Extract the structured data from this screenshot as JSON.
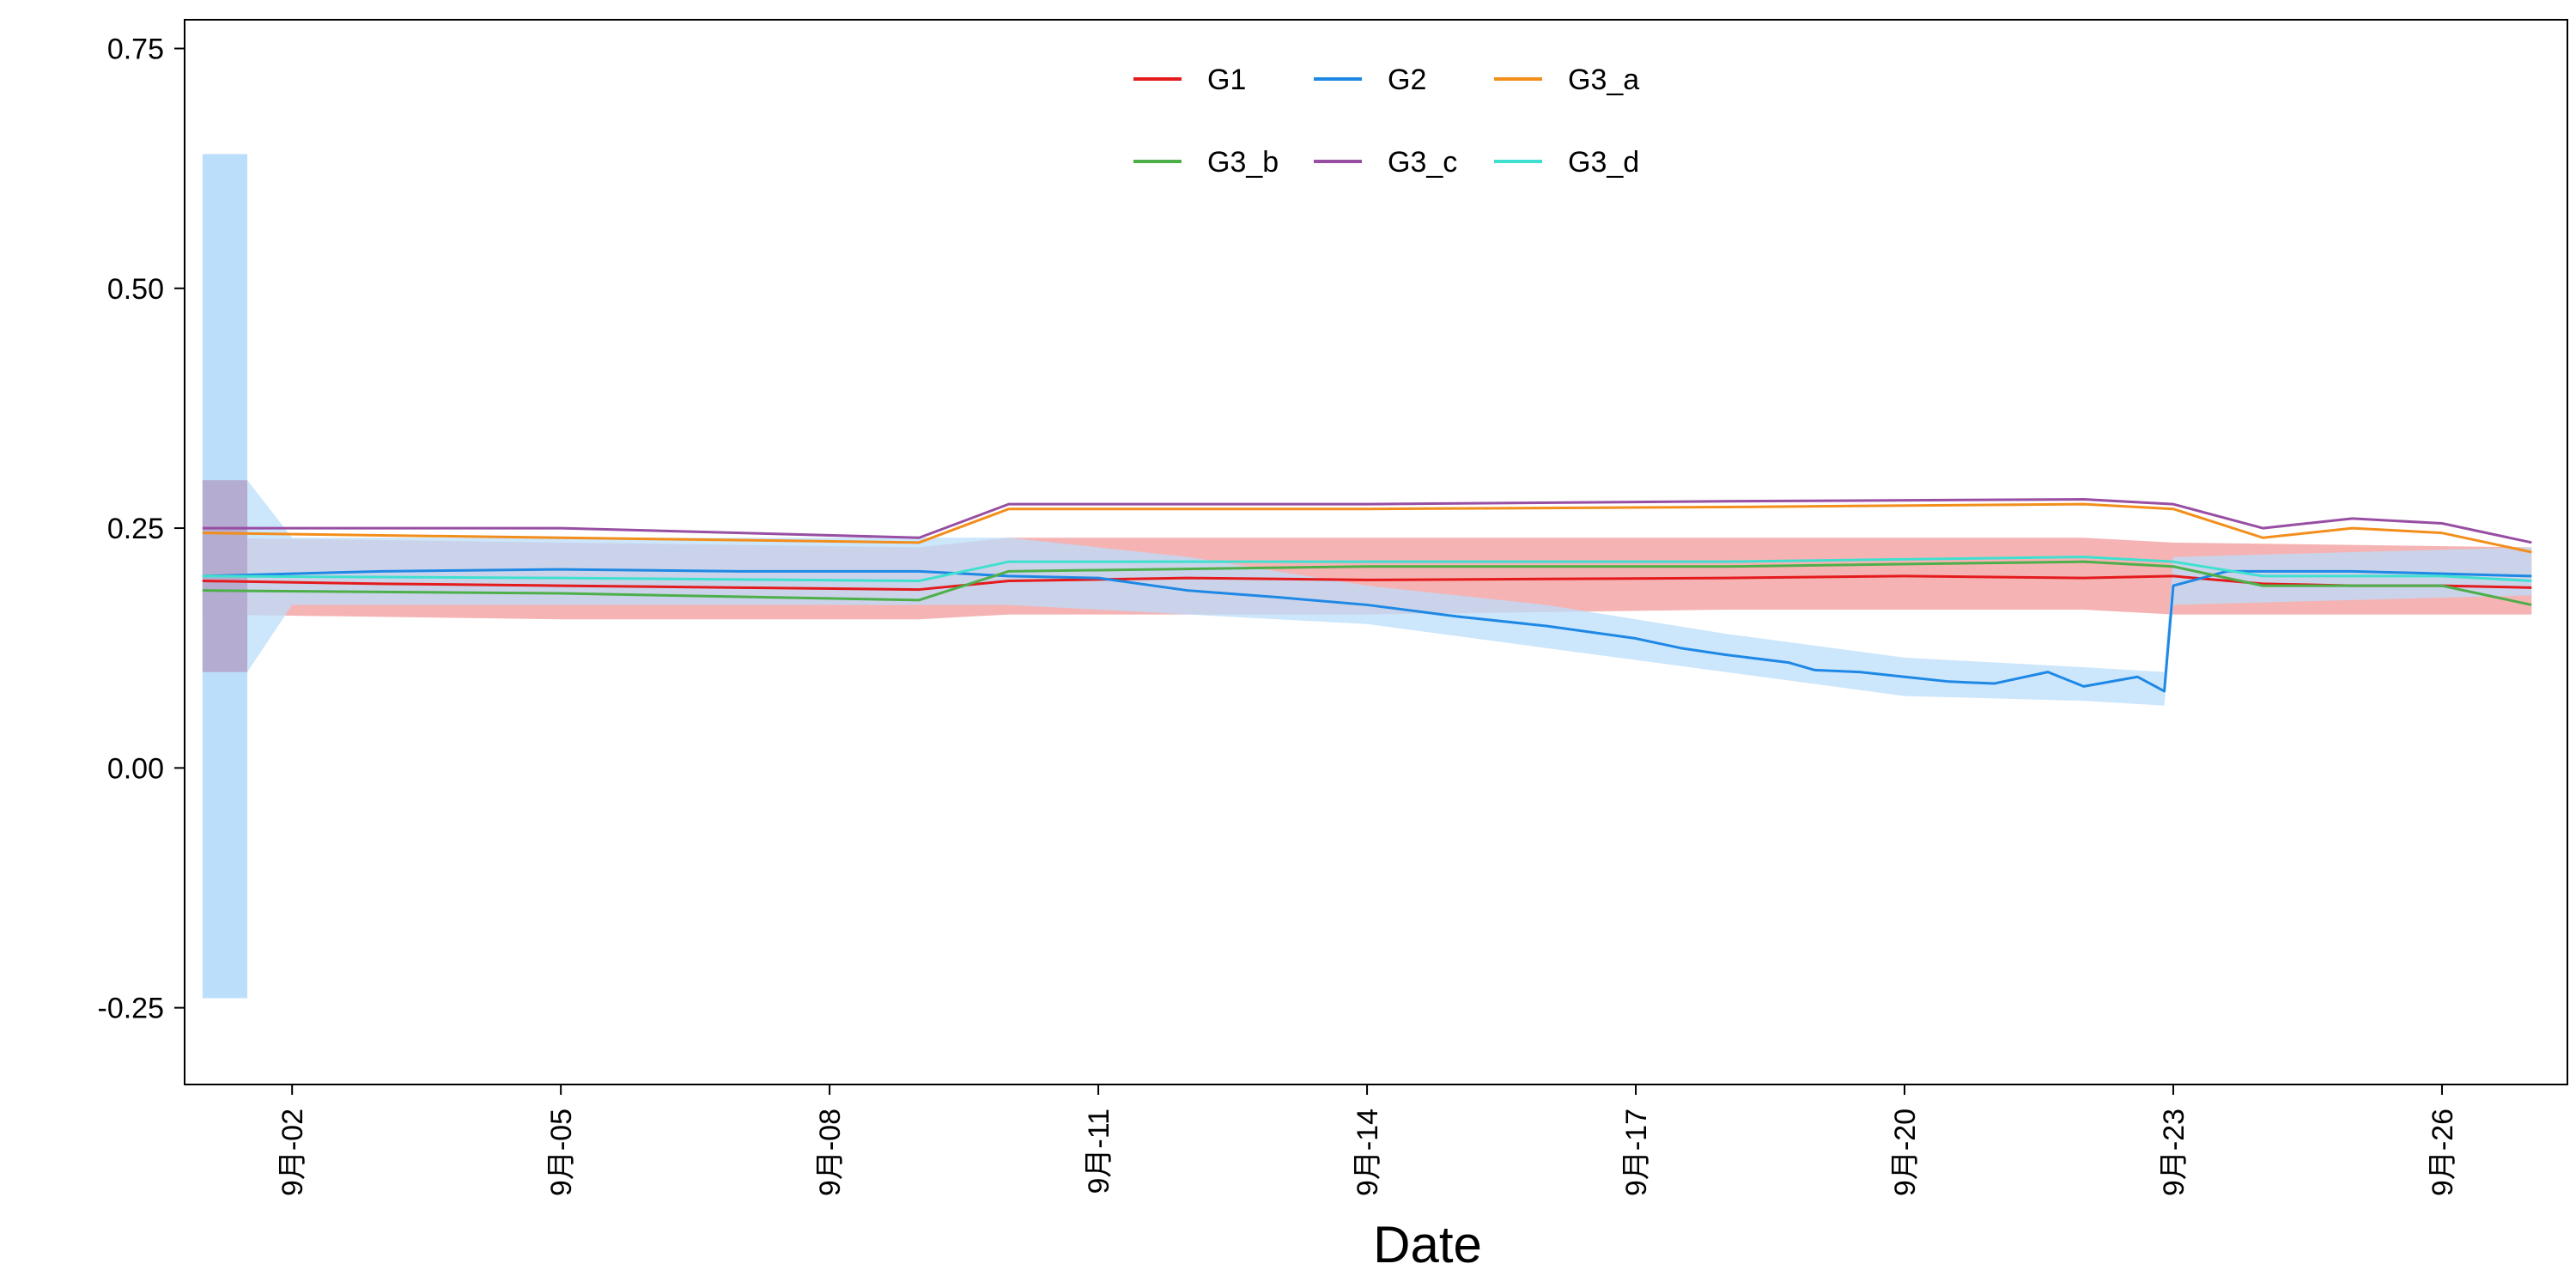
{
  "chart_data": {
    "type": "line",
    "title": "",
    "xlabel": "Date",
    "ylabel": "",
    "x_start": "2023-09-01",
    "x_end": "2023-09-27",
    "xlim": [
      "2023-09-01",
      "2023-09-28"
    ],
    "ylim": [
      -0.33,
      0.78
    ],
    "y_ticks": [
      -0.25,
      0.0,
      0.25,
      0.5,
      0.75
    ],
    "y_tick_labels": [
      "-0.25",
      "0.00",
      "0.25",
      "0.50",
      "0.75"
    ],
    "x_ticks": [
      "2023-09-02",
      "2023-09-05",
      "2023-09-08",
      "2023-09-11",
      "2023-09-14",
      "2023-09-17",
      "2023-09-20",
      "2023-09-23",
      "2023-09-26"
    ],
    "x_tick_labels": [
      "9月-02",
      "9月-05",
      "9月-08",
      "9月-11",
      "9月-14",
      "9月-17",
      "9月-20",
      "9月-23",
      "9月-26"
    ],
    "grid": false,
    "legend_position": "top-center",
    "series": [
      {
        "name": "G1",
        "color": "#E41A1C",
        "band_color": "#F4A6A6",
        "points": [
          [
            "2023-09-01",
            0.195
          ],
          [
            "2023-09-03",
            0.192
          ],
          [
            "2023-09-05",
            0.19
          ],
          [
            "2023-09-07",
            0.188
          ],
          [
            "2023-09-09",
            0.186
          ],
          [
            "2023-09-10",
            0.195
          ],
          [
            "2023-09-12",
            0.198
          ],
          [
            "2023-09-14",
            0.196
          ],
          [
            "2023-09-16",
            0.197
          ],
          [
            "2023-09-18",
            0.198
          ],
          [
            "2023-09-20",
            0.2
          ],
          [
            "2023-09-22",
            0.198
          ],
          [
            "2023-09-23",
            0.2
          ],
          [
            "2023-09-24",
            0.192
          ],
          [
            "2023-09-25",
            0.19
          ],
          [
            "2023-09-26",
            0.19
          ],
          [
            "2023-09-27",
            0.188
          ]
        ],
        "band": [
          [
            "2023-09-01",
            0.16,
            0.24
          ],
          [
            "2023-09-05",
            0.155,
            0.235
          ],
          [
            "2023-09-09",
            0.155,
            0.23
          ],
          [
            "2023-09-10",
            0.16,
            0.24
          ],
          [
            "2023-09-14",
            0.16,
            0.24
          ],
          [
            "2023-09-18",
            0.165,
            0.24
          ],
          [
            "2023-09-22",
            0.165,
            0.24
          ],
          [
            "2023-09-23",
            0.16,
            0.235
          ],
          [
            "2023-09-27",
            0.16,
            0.23
          ]
        ]
      },
      {
        "name": "G2",
        "color": "#1E88E5",
        "band_color": "#BBDEFB",
        "points": [
          [
            "2023-09-01",
            0.2
          ],
          [
            "2023-09-03",
            0.205
          ],
          [
            "2023-09-05",
            0.207
          ],
          [
            "2023-09-07",
            0.205
          ],
          [
            "2023-09-09",
            0.205
          ],
          [
            "2023-09-10",
            0.2
          ],
          [
            "2023-09-11",
            0.198
          ],
          [
            "2023-09-12",
            0.185
          ],
          [
            "2023-09-13",
            0.178
          ],
          [
            "2023-09-14",
            0.17
          ],
          [
            "2023-09-15",
            0.158
          ],
          [
            "2023-09-16",
            0.148
          ],
          [
            "2023-09-17",
            0.135
          ],
          [
            "2023-09-17.5",
            0.125
          ],
          [
            "2023-09-18",
            0.118
          ],
          [
            "2023-09-18.7",
            0.11
          ],
          [
            "2023-09-19",
            0.102
          ],
          [
            "2023-09-19.5",
            0.1
          ],
          [
            "2023-09-20",
            0.095
          ],
          [
            "2023-09-20.5",
            0.09
          ],
          [
            "2023-09-21",
            0.088
          ],
          [
            "2023-09-21.6",
            0.1
          ],
          [
            "2023-09-22",
            0.085
          ],
          [
            "2023-09-22.6",
            0.095
          ],
          [
            "2023-09-22.9",
            0.08
          ],
          [
            "2023-09-23",
            0.19
          ],
          [
            "2023-09-23.6",
            0.205
          ],
          [
            "2023-09-25",
            0.205
          ],
          [
            "2023-09-27",
            0.2
          ]
        ],
        "band": [
          [
            "2023-09-01",
            0.1,
            0.3
          ],
          [
            "2023-09-01.5",
            0.1,
            0.3
          ],
          [
            "2023-09-02",
            0.17,
            0.24
          ],
          [
            "2023-09-10",
            0.17,
            0.24
          ],
          [
            "2023-09-12",
            0.16,
            0.22
          ],
          [
            "2023-09-14",
            0.15,
            0.19
          ],
          [
            "2023-09-16",
            0.125,
            0.17
          ],
          [
            "2023-09-18",
            0.1,
            0.14
          ],
          [
            "2023-09-20",
            0.075,
            0.115
          ],
          [
            "2023-09-22",
            0.07,
            0.105
          ],
          [
            "2023-09-22.9",
            0.065,
            0.1
          ],
          [
            "2023-09-23",
            0.17,
            0.22
          ],
          [
            "2023-09-27",
            0.18,
            0.23
          ]
        ],
        "spike": {
          "x_start": "2023-09-01",
          "x_end": "2023-09-01.5",
          "low": -0.24,
          "high": 0.64
        }
      },
      {
        "name": "G3_a",
        "color": "#F28E1C",
        "points": [
          [
            "2023-09-01",
            0.245
          ],
          [
            "2023-09-05",
            0.24
          ],
          [
            "2023-09-09",
            0.235
          ],
          [
            "2023-09-10",
            0.27
          ],
          [
            "2023-09-14",
            0.27
          ],
          [
            "2023-09-18",
            0.272
          ],
          [
            "2023-09-22",
            0.275
          ],
          [
            "2023-09-23",
            0.27
          ],
          [
            "2023-09-24",
            0.24
          ],
          [
            "2023-09-25",
            0.25
          ],
          [
            "2023-09-26",
            0.245
          ],
          [
            "2023-09-27",
            0.225
          ]
        ]
      },
      {
        "name": "G3_b",
        "color": "#4DAF4A",
        "points": [
          [
            "2023-09-01",
            0.185
          ],
          [
            "2023-09-05",
            0.182
          ],
          [
            "2023-09-09",
            0.175
          ],
          [
            "2023-09-10",
            0.205
          ],
          [
            "2023-09-14",
            0.21
          ],
          [
            "2023-09-18",
            0.21
          ],
          [
            "2023-09-22",
            0.215
          ],
          [
            "2023-09-23",
            0.21
          ],
          [
            "2023-09-24",
            0.19
          ],
          [
            "2023-09-26",
            0.19
          ],
          [
            "2023-09-27",
            0.17
          ]
        ]
      },
      {
        "name": "G3_c",
        "color": "#984EA3",
        "points": [
          [
            "2023-09-01",
            0.25
          ],
          [
            "2023-09-05",
            0.25
          ],
          [
            "2023-09-09",
            0.24
          ],
          [
            "2023-09-10",
            0.275
          ],
          [
            "2023-09-14",
            0.275
          ],
          [
            "2023-09-18",
            0.278
          ],
          [
            "2023-09-22",
            0.28
          ],
          [
            "2023-09-23",
            0.275
          ],
          [
            "2023-09-24",
            0.25
          ],
          [
            "2023-09-25",
            0.26
          ],
          [
            "2023-09-26",
            0.255
          ],
          [
            "2023-09-27",
            0.235
          ]
        ]
      },
      {
        "name": "G3_d",
        "color": "#40E0D0",
        "points": [
          [
            "2023-09-01",
            0.2
          ],
          [
            "2023-09-05",
            0.198
          ],
          [
            "2023-09-09",
            0.195
          ],
          [
            "2023-09-10",
            0.215
          ],
          [
            "2023-09-14",
            0.215
          ],
          [
            "2023-09-18",
            0.215
          ],
          [
            "2023-09-22",
            0.22
          ],
          [
            "2023-09-23",
            0.215
          ],
          [
            "2023-09-24",
            0.2
          ],
          [
            "2023-09-26",
            0.2
          ],
          [
            "2023-09-27",
            0.195
          ]
        ]
      }
    ],
    "band_overlap_color": "#B4A3C9"
  }
}
